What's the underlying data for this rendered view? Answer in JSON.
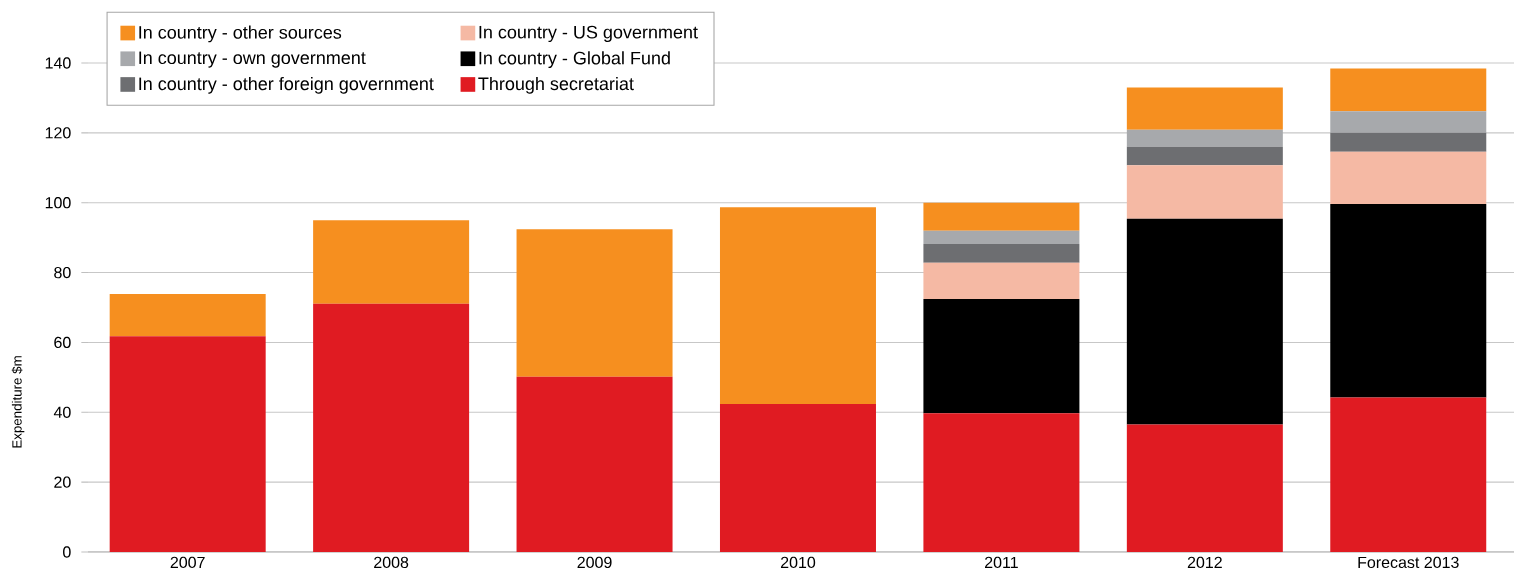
{
  "chart_data": {
    "type": "bar",
    "stacked": true,
    "ylabel": "Expenditure $m",
    "categories": [
      "2007",
      "2008",
      "2009",
      "2010",
      "2011",
      "2012",
      "Forecast 2013"
    ],
    "series": [
      {
        "name": "Through secretariat",
        "color": "#e01b22",
        "values": [
          61.8,
          71.1,
          50.2,
          42.4,
          39.7,
          36.5,
          44.2
        ]
      },
      {
        "name": "In country - Global Fund",
        "color": "#000000",
        "values": [
          null,
          null,
          null,
          null,
          32.7,
          58.9,
          55.4
        ]
      },
      {
        "name": "In country - US government",
        "color": "#f5b9a4",
        "values": [
          null,
          null,
          null,
          null,
          10.4,
          15.3,
          15.0
        ]
      },
      {
        "name": "In country - other foreign government",
        "color": "#6d6e71",
        "values": [
          null,
          null,
          null,
          null,
          5.4,
          5.3,
          5.4
        ]
      },
      {
        "name": "In country - own government",
        "color": "#a7a9ac",
        "values": [
          null,
          null,
          null,
          null,
          3.8,
          4.9,
          6.2
        ]
      },
      {
        "name": "In country - other sources",
        "color": "#f68f1f",
        "values": [
          12.1,
          23.9,
          42.2,
          56.3,
          8.0,
          12.1,
          12.2
        ]
      }
    ],
    "ylim": [
      0,
      140
    ],
    "yticks": [
      0,
      20,
      40,
      60,
      80,
      100,
      120,
      140
    ],
    "grid": "y",
    "legend": "top left"
  }
}
